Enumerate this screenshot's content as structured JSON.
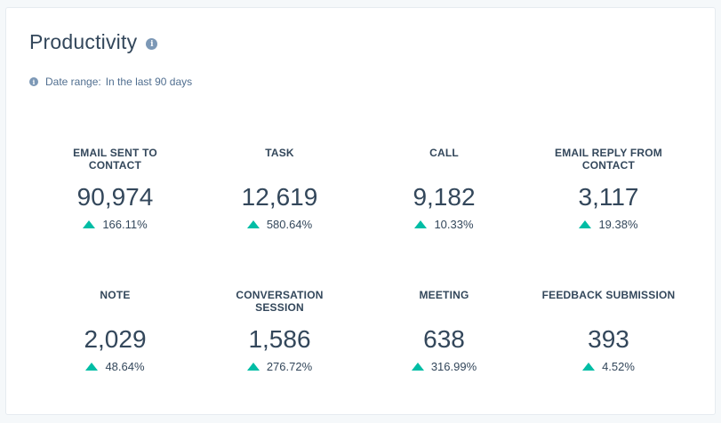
{
  "title": "Productivity",
  "date_range": {
    "label": "Date range:",
    "value": "In the last 90 days"
  },
  "metrics": [
    {
      "label": "EMAIL SENT TO CONTACT",
      "value": "90,974",
      "change": "166.11%"
    },
    {
      "label": "TASK",
      "value": "12,619",
      "change": "580.64%"
    },
    {
      "label": "CALL",
      "value": "9,182",
      "change": "10.33%"
    },
    {
      "label": "EMAIL REPLY FROM CONTACT",
      "value": "3,117",
      "change": "19.38%"
    },
    {
      "label": "NOTE",
      "value": "2,029",
      "change": "48.64%"
    },
    {
      "label": "CONVERSATION SESSION",
      "value": "1,586",
      "change": "276.72%"
    },
    {
      "label": "MEETING",
      "value": "638",
      "change": "316.99%"
    },
    {
      "label": "FEEDBACK SUBMISSION",
      "value": "393",
      "change": "4.52%"
    }
  ],
  "colors": {
    "increase": "#00bda5",
    "text": "#33475b",
    "info_icon": "#7c98b6"
  },
  "icons": {
    "title_info": "info-icon",
    "date_info": "info-icon",
    "change": "triangle-up-icon"
  }
}
